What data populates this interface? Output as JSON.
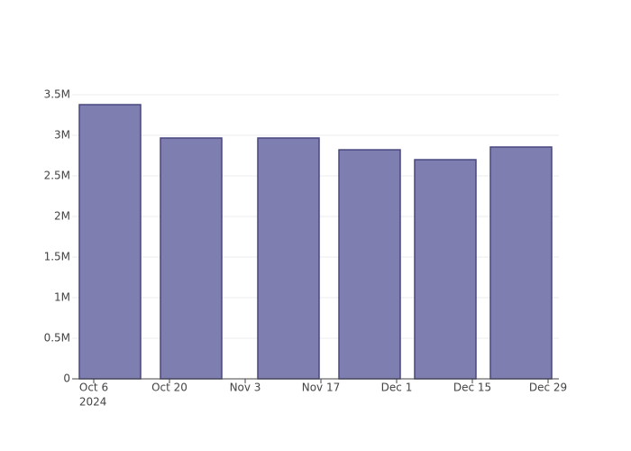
{
  "chart_data": {
    "type": "bar",
    "x": [
      "2024-10-09",
      "2024-10-24",
      "2024-11-11",
      "2024-11-26",
      "2024-12-10",
      "2024-12-24"
    ],
    "values": [
      3378000,
      2967000,
      2967000,
      2822000,
      2700000,
      2856000
    ],
    "color": "#7f7eb0",
    "edge_color": "#48477f",
    "xlim": [
      "2024-10-02",
      "2024-12-31"
    ],
    "xticks": [
      {
        "value": "2024-10-06",
        "label": "Oct 6"
      },
      {
        "value": "2024-10-20",
        "label": "Oct 20"
      },
      {
        "value": "2024-11-03",
        "label": "Nov 3"
      },
      {
        "value": "2024-11-17",
        "label": "Nov 17"
      },
      {
        "value": "2024-12-01",
        "label": "Dec 1"
      },
      {
        "value": "2024-12-15",
        "label": "Dec 15"
      },
      {
        "value": "2024-12-29",
        "label": "Dec 29"
      }
    ],
    "x_year_label": "2024",
    "ylim": [
      0,
      3556000
    ],
    "yticks": [
      0,
      {
        "value": 500000,
        "label": "0.5M"
      },
      {
        "value": 1000000,
        "label": "1M"
      },
      {
        "value": 1500000,
        "label": "1.5M"
      },
      {
        "value": 2000000,
        "label": "2M"
      },
      {
        "value": 2500000,
        "label": "2.5M"
      },
      {
        "value": 3000000,
        "label": "3M"
      },
      {
        "value": 3500000,
        "label": "3.5M"
      }
    ],
    "grid": true
  }
}
